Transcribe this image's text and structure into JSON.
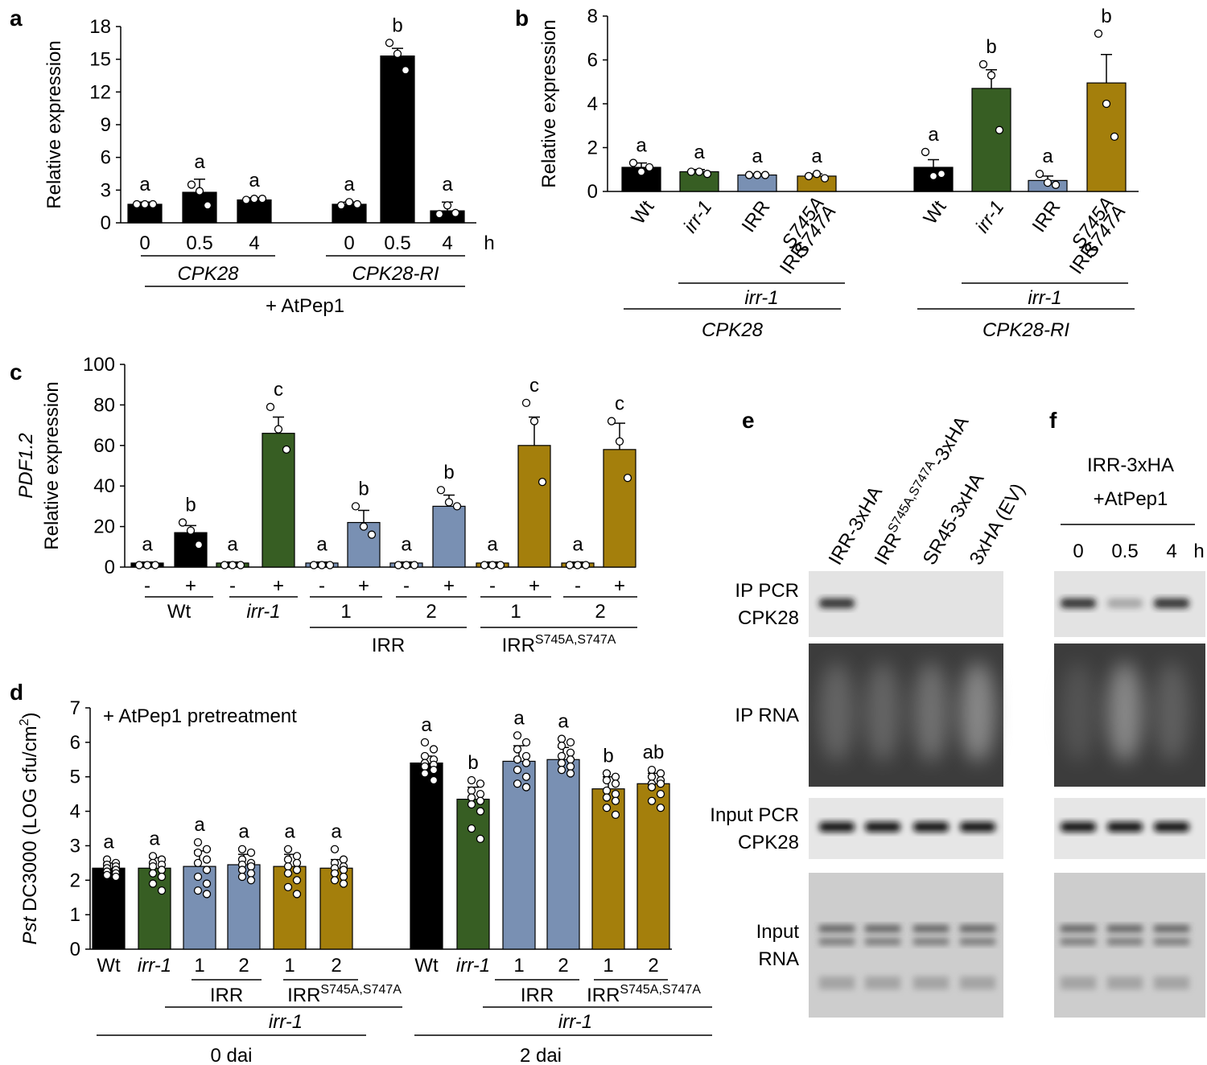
{
  "chart_data": [
    {
      "type": "bar",
      "panel_label": "a",
      "ylabel": "Relative expression",
      "categories": [
        "0",
        "0.5",
        "4",
        "0",
        "0.5",
        "4"
      ],
      "x_unit": "h",
      "values": [
        1.7,
        2.8,
        2.1,
        1.7,
        15.3,
        1.1
      ],
      "errors": [
        0.2,
        1.2,
        0.2,
        0.2,
        0.7,
        0.8
      ],
      "points": [
        [
          1.7,
          1.7,
          1.7
        ],
        [
          3.5,
          2.9,
          1.6
        ],
        [
          2.1,
          2.2,
          2.2
        ],
        [
          1.6,
          1.9,
          1.7
        ],
        [
          16.5,
          15.5,
          14.0
        ],
        [
          0.8,
          1.6,
          0.9
        ]
      ],
      "letters": [
        "a",
        "a",
        "a",
        "a",
        "b",
        "a"
      ],
      "colors": [
        "#000000",
        "#000000",
        "#000000",
        "#000000",
        "#000000",
        "#000000"
      ],
      "ylim": [
        0,
        18
      ],
      "yticks": [
        0,
        3,
        6,
        9,
        12,
        15,
        18
      ],
      "group_labels": [
        {
          "text": "CPK28"
        },
        {
          "text": "CPK28-RI"
        },
        {
          "text": "+ AtPep1"
        }
      ]
    },
    {
      "type": "bar",
      "panel_label": "b",
      "ylabel": "Relative expression",
      "categories": [
        "Wt",
        "irr-1",
        "IRR",
        "IRR",
        "Wt",
        "irr-1",
        "IRR",
        "IRR"
      ],
      "category_sup": [
        null,
        null,
        null,
        [
          "S745A",
          "S747A"
        ],
        null,
        null,
        null,
        [
          "S745A",
          "S747A"
        ]
      ],
      "values": [
        1.1,
        0.9,
        0.75,
        0.7,
        1.1,
        4.7,
        0.5,
        4.95
      ],
      "errors": [
        0.2,
        0.1,
        0.05,
        0.1,
        0.35,
        0.85,
        0.2,
        1.3
      ],
      "points": [
        [
          1.3,
          0.9,
          1.1
        ],
        [
          0.9,
          0.9,
          0.8
        ],
        [
          0.75,
          0.75,
          0.75
        ],
        [
          0.7,
          0.8,
          0.6
        ],
        [
          1.8,
          0.7,
          0.8
        ],
        [
          5.8,
          5.3,
          2.8
        ],
        [
          0.8,
          0.4,
          0.3
        ],
        [
          7.2,
          4.0,
          2.5
        ]
      ],
      "letters": [
        "a",
        "a",
        "a",
        "a",
        "a",
        "b",
        "a",
        "b"
      ],
      "colors": [
        "#000000",
        "#375e23",
        "#7990b3",
        "#a47f0c",
        "#000000",
        "#375e23",
        "#7990b3",
        "#a47f0c"
      ],
      "ylim": [
        0,
        8
      ],
      "yticks": [
        0,
        2,
        4,
        6,
        8
      ],
      "group_labels": [
        {
          "text": "irr-1"
        },
        {
          "text": "irr-1"
        },
        {
          "text": "CPK28"
        },
        {
          "text": "CPK28-RI"
        }
      ]
    },
    {
      "type": "bar",
      "panel_label": "c",
      "ylabel_italic": "PDF1.2",
      "ylabel": "Relative expression",
      "categories": [
        "-",
        "+",
        "-",
        "+",
        "-",
        "+",
        "-",
        "+",
        "-",
        "+",
        "-",
        "+"
      ],
      "values": [
        2,
        17,
        2,
        66,
        2,
        22,
        2,
        30,
        2,
        60,
        2,
        58
      ],
      "errors": [
        0.5,
        3.5,
        0.5,
        8,
        0.5,
        6,
        0.5,
        5.5,
        0.5,
        14,
        0.5,
        13
      ],
      "points": [
        [
          1,
          1,
          1
        ],
        [
          22,
          18,
          11
        ],
        [
          1,
          1,
          1
        ],
        [
          79,
          68,
          58
        ],
        [
          1,
          1,
          1
        ],
        [
          30,
          20,
          16
        ],
        [
          1,
          1,
          1
        ],
        [
          38,
          32,
          30
        ],
        [
          1,
          1,
          1
        ],
        [
          81,
          72,
          42
        ],
        [
          1,
          1,
          1
        ],
        [
          72,
          62,
          44
        ]
      ],
      "letters": [
        "a",
        "b",
        "a",
        "c",
        "a",
        "b",
        "a",
        "b",
        "a",
        "c",
        "a",
        "c"
      ],
      "colors": [
        "#000000",
        "#000000",
        "#375e23",
        "#375e23",
        "#7990b3",
        "#7990b3",
        "#7990b3",
        "#7990b3",
        "#a47f0c",
        "#a47f0c",
        "#a47f0c",
        "#a47f0c"
      ],
      "ylim": [
        0,
        100
      ],
      "yticks": [
        0,
        20,
        40,
        60,
        80,
        100
      ],
      "group_labels": [
        {
          "text": "Wt"
        },
        {
          "text": "irr-1"
        },
        {
          "text": "1"
        },
        {
          "text": "2"
        },
        {
          "text": "1"
        },
        {
          "text": "2"
        },
        {
          "text": "IRR"
        },
        {
          "text": "IRR",
          "sup": "S745A,S747A"
        }
      ]
    },
    {
      "type": "bar",
      "panel_label": "d",
      "ylabel_italic": "Pst",
      "ylabel": " DC3000 (LOG cfu/cm",
      "ylabel_sup": "2",
      "ylabel_end": ")",
      "annotation": "+ AtPep1 pretreatment",
      "categories": [
        "Wt",
        "irr-1",
        "1",
        "2",
        "1",
        "2",
        "Wt",
        "irr-1",
        "1",
        "2",
        "1",
        "2"
      ],
      "values": [
        2.35,
        2.35,
        2.4,
        2.45,
        2.4,
        2.35,
        5.4,
        4.35,
        5.45,
        5.5,
        4.65,
        4.8
      ],
      "errors": [
        0.15,
        0.3,
        0.45,
        0.3,
        0.35,
        0.25,
        0.2,
        0.35,
        0.45,
        0.35,
        0.35,
        0.3
      ],
      "points": [
        [
          2.6,
          2.5,
          2.45,
          2.4,
          2.35,
          2.3,
          2.25,
          2.2,
          2.15,
          2.1
        ],
        [
          2.7,
          2.6,
          2.5,
          2.45,
          2.4,
          2.3,
          2.2,
          2.1,
          1.9,
          1.7
        ],
        [
          3.1,
          2.9,
          2.8,
          2.6,
          2.5,
          2.3,
          2.1,
          1.9,
          1.7,
          1.6
        ],
        [
          2.9,
          2.8,
          2.6,
          2.5,
          2.45,
          2.4,
          2.3,
          2.2,
          2.1,
          2.0
        ],
        [
          2.9,
          2.7,
          2.6,
          2.5,
          2.4,
          2.3,
          2.2,
          2.0,
          1.8,
          1.6
        ],
        [
          2.9,
          2.6,
          2.5,
          2.4,
          2.35,
          2.3,
          2.2,
          2.1,
          2.0,
          1.9
        ],
        [
          6.0,
          5.8,
          5.6,
          5.5,
          5.4,
          5.35,
          5.3,
          5.2,
          5.1,
          4.9
        ],
        [
          4.9,
          4.8,
          4.6,
          4.5,
          4.4,
          4.3,
          4.2,
          4.0,
          3.5,
          3.2
        ],
        [
          6.2,
          6.0,
          5.8,
          5.6,
          5.5,
          5.4,
          5.2,
          5.0,
          4.8,
          4.7
        ],
        [
          6.1,
          6.0,
          5.9,
          5.7,
          5.6,
          5.5,
          5.4,
          5.3,
          5.2,
          5.1
        ],
        [
          5.1,
          5.0,
          4.9,
          4.8,
          4.6,
          4.5,
          4.4,
          4.3,
          4.1,
          3.9
        ],
        [
          5.2,
          5.1,
          5.0,
          4.9,
          4.8,
          4.8,
          4.7,
          4.5,
          4.3,
          4.1
        ]
      ],
      "letters": [
        "a",
        "a",
        "a",
        "a",
        "a",
        "a",
        "a",
        "b",
        "a",
        "a",
        "b",
        "ab"
      ],
      "colors": [
        "#000000",
        "#375e23",
        "#7990b3",
        "#7990b3",
        "#a47f0c",
        "#a47f0c",
        "#000000",
        "#375e23",
        "#7990b3",
        "#7990b3",
        "#a47f0c",
        "#a47f0c"
      ],
      "ylim": [
        0,
        7
      ],
      "yticks": [
        0,
        1,
        2,
        3,
        4,
        5,
        6,
        7
      ],
      "group_labels": [
        {
          "text": "IRR"
        },
        {
          "text": "IRR",
          "sup": "S745A,S747A"
        },
        {
          "text": "irr-1"
        },
        {
          "text": "IRR"
        },
        {
          "text": "IRR",
          "sup": "S745A,S747A"
        },
        {
          "text": "irr-1"
        },
        {
          "text": "0 dai"
        },
        {
          "text": "2 dai"
        }
      ]
    }
  ],
  "gel_panels": [
    {
      "panel_label": "e",
      "lanes": [
        {
          "text": "IRR-3xHA"
        },
        {
          "text": "IRR",
          "sup": "S745A,S747A",
          "end": "-3xHA"
        },
        {
          "text": "SR45-3xHA"
        },
        {
          "text": "3xHA (EV)"
        }
      ],
      "rows": [
        [
          "IP PCR",
          "CPK28"
        ],
        [
          "IP RNA"
        ],
        [
          "Input PCR",
          "CPK28"
        ],
        [
          "Input",
          "RNA"
        ]
      ]
    },
    {
      "panel_label": "f",
      "title": [
        "IRR-3xHA",
        "+AtPep1"
      ],
      "lanes": [
        {
          "text": "0"
        },
        {
          "text": "0.5"
        },
        {
          "text": "4"
        }
      ],
      "unit": "h"
    }
  ]
}
